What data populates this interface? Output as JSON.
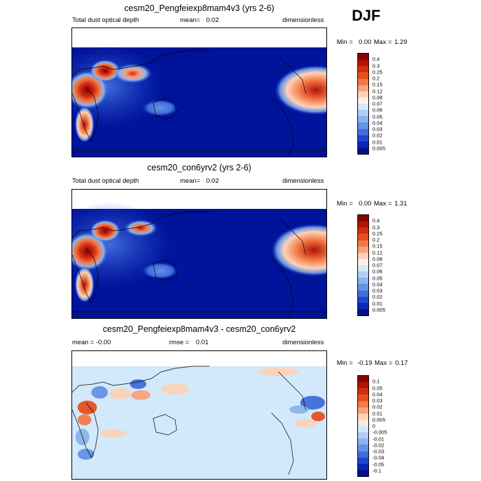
{
  "season": "DJF",
  "colors": {
    "ocean_base": "#00139b",
    "diff_base": "#d2e8fb",
    "coast": "#000000"
  },
  "panels": [
    {
      "title": "cesm20_Pengfeiexp8mam4v3 (yrs 2-6)",
      "left_label": "Total dust optical depth",
      "mean_label": "mean=",
      "mean_value": "0.02",
      "units": "dimensionless",
      "min_label": "Min =",
      "min_value": "0.00",
      "max_label": "Max =",
      "max_value": "1.29",
      "colorbar": {
        "levels": [
          "0.4",
          "0.3",
          "0.25",
          "0.2",
          "0.15",
          "0.12",
          "0.08",
          "0.07",
          "0.06",
          "0.05",
          "0.04",
          "0.03",
          "0.02",
          "0.01",
          "0.005"
        ],
        "colors": [
          "#8a0000",
          "#b41209",
          "#d42d12",
          "#e6501e",
          "#f27a48",
          "#f9a27c",
          "#fdd2b8",
          "#fbf1ea",
          "#d8e9f9",
          "#b1cff3",
          "#8bb3ed",
          "#6592e3",
          "#3f6ddb",
          "#1f47cc",
          "#0c27b5",
          "#02108a"
        ]
      }
    },
    {
      "title": "cesm20_con6yrv2 (yrs 2-6)",
      "left_label": "Total dust optical depth",
      "mean_label": "mean=",
      "mean_value": "0.02",
      "units": "dimensionless",
      "min_label": "Min =",
      "min_value": "0.00",
      "max_label": "Max =",
      "max_value": "1.31",
      "colorbar": {
        "levels": [
          "0.4",
          "0.3",
          "0.25",
          "0.2",
          "0.15",
          "0.12",
          "0.08",
          "0.07",
          "0.06",
          "0.05",
          "0.04",
          "0.03",
          "0.02",
          "0.01",
          "0.005"
        ],
        "colors": [
          "#8a0000",
          "#b41209",
          "#d42d12",
          "#e6501e",
          "#f27a48",
          "#f9a27c",
          "#fdd2b8",
          "#fbf1ea",
          "#d8e9f9",
          "#b1cff3",
          "#8bb3ed",
          "#6592e3",
          "#3f6ddb",
          "#1f47cc",
          "#0c27b5",
          "#02108a"
        ]
      }
    },
    {
      "title": "cesm20_Pengfeiexp8mam4v3 - cesm20_con6yrv2",
      "left_label": "mean =  -0.00",
      "mean_label": "rmse =",
      "mean_value": "0.01",
      "units": "dimensionless",
      "min_label": "Min =",
      "min_value": "-0.19",
      "max_label": "Max =",
      "max_value": "0.17",
      "colorbar": {
        "levels": [
          "0.1",
          "0.05",
          "0.04",
          "0.03",
          "0.02",
          "0.01",
          "0.005",
          "0",
          "-0.005",
          "-0.01",
          "-0.02",
          "-0.03",
          "-0.04",
          "-0.05",
          "-0.1"
        ],
        "colors": [
          "#8a0000",
          "#b41209",
          "#d42d12",
          "#e6501e",
          "#f27a48",
          "#f9a27c",
          "#fdd2b8",
          "#fbe9de",
          "#d2e8fb",
          "#b1cff3",
          "#8bb3ed",
          "#6592e3",
          "#3f6ddb",
          "#1f47cc",
          "#0c27b5",
          "#02108a"
        ]
      }
    }
  ]
}
